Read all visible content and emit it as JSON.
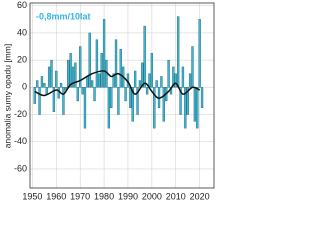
{
  "chart_data": {
    "type": "bar",
    "annotation": "-0,8mm/10lat",
    "y_label": "anomalia sumy opadu [mm]",
    "x": [
      1951,
      1952,
      1953,
      1954,
      1955,
      1956,
      1957,
      1958,
      1959,
      1960,
      1961,
      1962,
      1963,
      1964,
      1965,
      1966,
      1967,
      1968,
      1969,
      1970,
      1971,
      1972,
      1973,
      1974,
      1975,
      1976,
      1977,
      1978,
      1979,
      1980,
      1981,
      1982,
      1983,
      1984,
      1985,
      1986,
      1987,
      1988,
      1989,
      1990,
      1991,
      1992,
      1993,
      1994,
      1995,
      1996,
      1997,
      1998,
      1999,
      2000,
      2001,
      2002,
      2003,
      2004,
      2005,
      2006,
      2007,
      2008,
      2009,
      2010,
      2011,
      2012,
      2013,
      2014,
      2015,
      2016,
      2017,
      2018,
      2019,
      2020,
      2021
    ],
    "values": [
      -12,
      5,
      -20,
      8,
      3,
      -5,
      15,
      20,
      -18,
      12,
      -8,
      3,
      -20,
      -2,
      20,
      25,
      15,
      18,
      -10,
      30,
      -5,
      -30,
      8,
      40,
      5,
      -10,
      35,
      10,
      25,
      50,
      20,
      -30,
      -15,
      10,
      35,
      -20,
      28,
      15,
      -10,
      10,
      -15,
      -25,
      12,
      -20,
      5,
      18,
      45,
      -5,
      10,
      25,
      -30,
      5,
      -15,
      8,
      -25,
      -10,
      20,
      -5,
      15,
      10,
      52,
      -20,
      15,
      -30,
      -20,
      10,
      30,
      -25,
      -30,
      50,
      -15
    ],
    "color": "#3cb6d0",
    "smooth": {
      "x": [
        1951,
        1955,
        1960,
        1963,
        1966,
        1970,
        1975,
        1980,
        1983,
        1986,
        1990,
        1993,
        1997,
        2000,
        2003,
        2007,
        2010,
        2013,
        2017,
        2020
      ],
      "values": [
        -3,
        -6,
        -2,
        -5,
        2,
        5,
        10,
        12,
        8,
        10,
        4,
        -5,
        3,
        -3,
        -8,
        -3,
        3,
        -5,
        0,
        -2
      ],
      "color": "#111111"
    },
    "xlim": [
      1949,
      2026
    ],
    "xticks": [
      1950,
      1960,
      1970,
      1980,
      1990,
      2000,
      2010,
      2020
    ],
    "ylim": [
      -74,
      62
    ],
    "yticks": [
      -60,
      -40,
      -20,
      0,
      20,
      40,
      60
    ],
    "grid": true
  }
}
